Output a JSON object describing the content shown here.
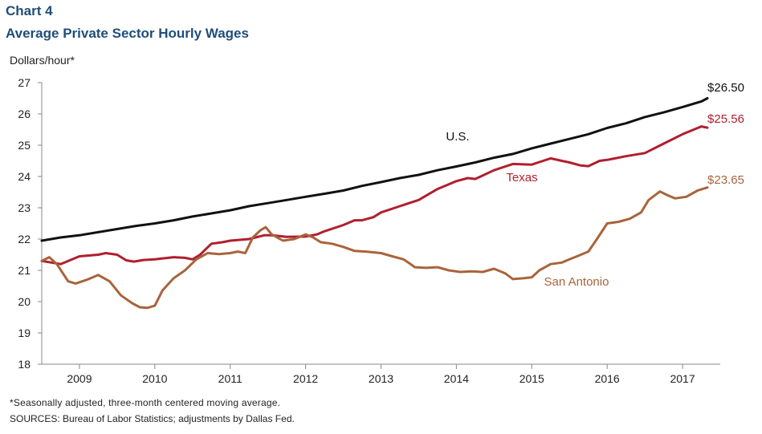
{
  "header": {
    "chart_number": "Chart 4",
    "title": "Average Private Sector Hourly Wages",
    "y_unit": "Dollars/hour*"
  },
  "footer": {
    "note": "*Seasonally adjusted, three-month centered moving average.",
    "source": "SOURCES: Bureau of Labor Statistics; adjustments by Dallas Fed."
  },
  "chart_data": {
    "type": "line",
    "title": "Average Private Sector Hourly Wages",
    "ylabel": "Dollars/hour*",
    "xlabel": "",
    "ylim": [
      18,
      27
    ],
    "yticks": [
      18,
      19,
      20,
      21,
      22,
      23,
      24,
      25,
      26,
      27
    ],
    "xlim": [
      2008.5,
      2017.5
    ],
    "x_tick_labels": [
      "2009",
      "2010",
      "2011",
      "2012",
      "2013",
      "2014",
      "2015",
      "2016",
      "2017"
    ],
    "grid": false,
    "legend": "inline",
    "series": [
      {
        "name": "U.S.",
        "color": "#111111",
        "end_label": "$26.50",
        "points": [
          [
            2008.5,
            21.95
          ],
          [
            2008.75,
            22.05
          ],
          [
            2009.0,
            22.12
          ],
          [
            2009.25,
            22.22
          ],
          [
            2009.5,
            22.32
          ],
          [
            2009.75,
            22.42
          ],
          [
            2010.0,
            22.5
          ],
          [
            2010.25,
            22.6
          ],
          [
            2010.5,
            22.72
          ],
          [
            2010.75,
            22.82
          ],
          [
            2011.0,
            22.92
          ],
          [
            2011.25,
            23.05
          ],
          [
            2011.5,
            23.15
          ],
          [
            2011.75,
            23.25
          ],
          [
            2012.0,
            23.35
          ],
          [
            2012.25,
            23.45
          ],
          [
            2012.5,
            23.55
          ],
          [
            2012.75,
            23.7
          ],
          [
            2013.0,
            23.82
          ],
          [
            2013.25,
            23.95
          ],
          [
            2013.5,
            24.05
          ],
          [
            2013.75,
            24.2
          ],
          [
            2014.0,
            24.32
          ],
          [
            2014.25,
            24.45
          ],
          [
            2014.5,
            24.6
          ],
          [
            2014.75,
            24.72
          ],
          [
            2015.0,
            24.9
          ],
          [
            2015.25,
            25.05
          ],
          [
            2015.5,
            25.2
          ],
          [
            2015.75,
            25.35
          ],
          [
            2016.0,
            25.55
          ],
          [
            2016.25,
            25.7
          ],
          [
            2016.5,
            25.9
          ],
          [
            2016.75,
            26.05
          ],
          [
            2017.0,
            26.22
          ],
          [
            2017.25,
            26.4
          ],
          [
            2017.33,
            26.5
          ]
        ]
      },
      {
        "name": "Texas",
        "color": "#b01f2e",
        "end_label": "$25.56",
        "points": [
          [
            2008.5,
            21.3
          ],
          [
            2008.75,
            21.2
          ],
          [
            2009.0,
            21.45
          ],
          [
            2009.25,
            21.5
          ],
          [
            2009.35,
            21.55
          ],
          [
            2009.5,
            21.5
          ],
          [
            2009.62,
            21.32
          ],
          [
            2009.72,
            21.28
          ],
          [
            2009.85,
            21.33
          ],
          [
            2010.0,
            21.35
          ],
          [
            2010.25,
            21.42
          ],
          [
            2010.4,
            21.4
          ],
          [
            2010.5,
            21.35
          ],
          [
            2010.6,
            21.5
          ],
          [
            2010.75,
            21.85
          ],
          [
            2010.9,
            21.9
          ],
          [
            2011.0,
            21.95
          ],
          [
            2011.25,
            22.0
          ],
          [
            2011.45,
            22.12
          ],
          [
            2011.55,
            22.12
          ],
          [
            2011.75,
            22.07
          ],
          [
            2012.0,
            22.08
          ],
          [
            2012.15,
            22.15
          ],
          [
            2012.25,
            22.25
          ],
          [
            2012.5,
            22.45
          ],
          [
            2012.65,
            22.6
          ],
          [
            2012.75,
            22.6
          ],
          [
            2012.9,
            22.7
          ],
          [
            2013.0,
            22.85
          ],
          [
            2013.25,
            23.05
          ],
          [
            2013.5,
            23.25
          ],
          [
            2013.75,
            23.6
          ],
          [
            2014.0,
            23.85
          ],
          [
            2014.15,
            23.95
          ],
          [
            2014.25,
            23.92
          ],
          [
            2014.5,
            24.2
          ],
          [
            2014.75,
            24.4
          ],
          [
            2015.0,
            24.38
          ],
          [
            2015.15,
            24.5
          ],
          [
            2015.25,
            24.58
          ],
          [
            2015.4,
            24.5
          ],
          [
            2015.5,
            24.45
          ],
          [
            2015.65,
            24.35
          ],
          [
            2015.75,
            24.33
          ],
          [
            2015.9,
            24.5
          ],
          [
            2016.0,
            24.53
          ],
          [
            2016.25,
            24.65
          ],
          [
            2016.5,
            24.75
          ],
          [
            2016.75,
            25.05
          ],
          [
            2017.0,
            25.35
          ],
          [
            2017.25,
            25.6
          ],
          [
            2017.33,
            25.56
          ]
        ]
      },
      {
        "name": "San Antonio",
        "color": "#a8643c",
        "end_label": "$23.65",
        "points": [
          [
            2008.5,
            21.3
          ],
          [
            2008.6,
            21.42
          ],
          [
            2008.7,
            21.2
          ],
          [
            2008.85,
            20.65
          ],
          [
            2008.95,
            20.58
          ],
          [
            2009.1,
            20.7
          ],
          [
            2009.25,
            20.85
          ],
          [
            2009.4,
            20.65
          ],
          [
            2009.55,
            20.2
          ],
          [
            2009.7,
            19.95
          ],
          [
            2009.8,
            19.82
          ],
          [
            2009.9,
            19.8
          ],
          [
            2010.0,
            19.87
          ],
          [
            2010.1,
            20.35
          ],
          [
            2010.25,
            20.75
          ],
          [
            2010.4,
            21.0
          ],
          [
            2010.55,
            21.35
          ],
          [
            2010.7,
            21.55
          ],
          [
            2010.85,
            21.52
          ],
          [
            2011.0,
            21.55
          ],
          [
            2011.1,
            21.6
          ],
          [
            2011.2,
            21.55
          ],
          [
            2011.3,
            22.05
          ],
          [
            2011.4,
            22.28
          ],
          [
            2011.47,
            22.38
          ],
          [
            2011.55,
            22.15
          ],
          [
            2011.7,
            21.95
          ],
          [
            2011.85,
            22.0
          ],
          [
            2012.0,
            22.15
          ],
          [
            2012.1,
            22.05
          ],
          [
            2012.2,
            21.9
          ],
          [
            2012.35,
            21.85
          ],
          [
            2012.5,
            21.75
          ],
          [
            2012.65,
            21.62
          ],
          [
            2012.8,
            21.6
          ],
          [
            2013.0,
            21.55
          ],
          [
            2013.15,
            21.45
          ],
          [
            2013.3,
            21.35
          ],
          [
            2013.45,
            21.1
          ],
          [
            2013.6,
            21.08
          ],
          [
            2013.75,
            21.1
          ],
          [
            2013.9,
            21.0
          ],
          [
            2014.05,
            20.95
          ],
          [
            2014.2,
            20.97
          ],
          [
            2014.35,
            20.95
          ],
          [
            2014.5,
            21.05
          ],
          [
            2014.65,
            20.9
          ],
          [
            2014.75,
            20.72
          ],
          [
            2014.9,
            20.75
          ],
          [
            2015.0,
            20.78
          ],
          [
            2015.1,
            21.0
          ],
          [
            2015.25,
            21.2
          ],
          [
            2015.4,
            21.25
          ],
          [
            2015.5,
            21.35
          ],
          [
            2015.6,
            21.45
          ],
          [
            2015.75,
            21.6
          ],
          [
            2015.85,
            21.95
          ],
          [
            2016.0,
            22.5
          ],
          [
            2016.15,
            22.55
          ],
          [
            2016.3,
            22.65
          ],
          [
            2016.45,
            22.85
          ],
          [
            2016.55,
            23.25
          ],
          [
            2016.7,
            23.52
          ],
          [
            2016.8,
            23.4
          ],
          [
            2016.9,
            23.3
          ],
          [
            2017.05,
            23.35
          ],
          [
            2017.2,
            23.55
          ],
          [
            2017.33,
            23.65
          ]
        ]
      }
    ]
  }
}
